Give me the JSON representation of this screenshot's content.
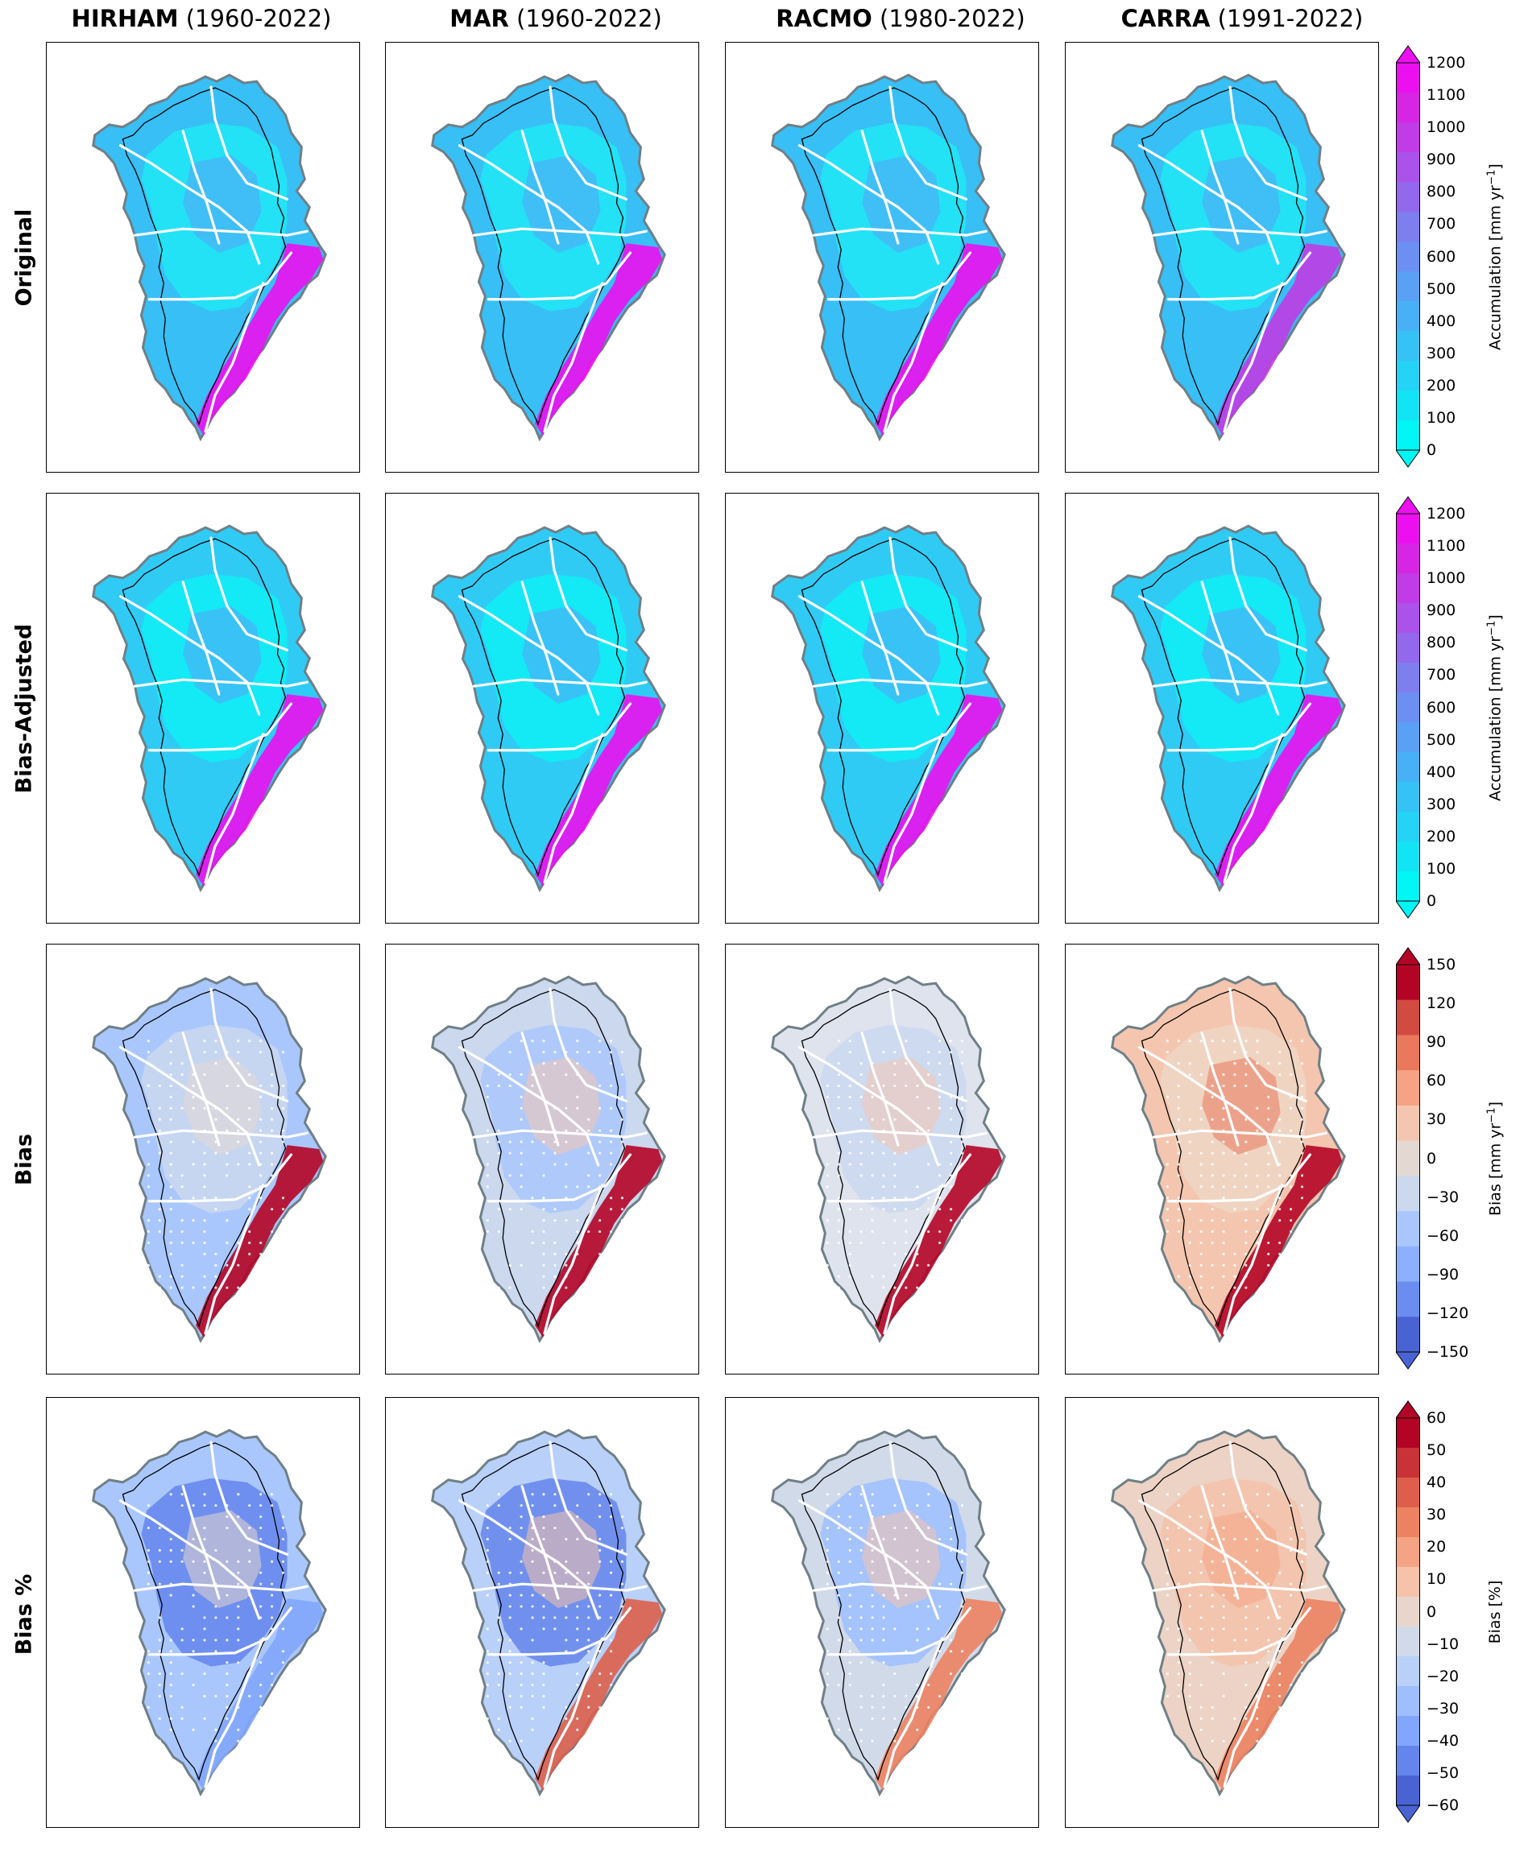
{
  "columns": [
    {
      "model": "HIRHAM",
      "period": "(1960-2022)"
    },
    {
      "model": "MAR",
      "period": "(1960-2022)"
    },
    {
      "model": "RACMO",
      "period": "(1980-2022)"
    },
    {
      "model": "CARRA",
      "period": "(1991-2022)"
    }
  ],
  "rows": [
    "Original",
    "Bias-Adjusted",
    "Bias",
    "Bias %"
  ],
  "colorbars": [
    {
      "label": "Accumulation [mm yr",
      "label_sup": "−1",
      "label_end": "]",
      "ticks": [
        "0",
        "100",
        "200",
        "300",
        "400",
        "500",
        "600",
        "700",
        "800",
        "900",
        "1000",
        "1100",
        "1200"
      ],
      "palette": [
        "#00f5f5",
        "#12e4f5",
        "#24d3f5",
        "#36c2f5",
        "#48b1f5",
        "#5aa0f5",
        "#6c8ff2",
        "#7e7eef",
        "#9468ec",
        "#aa52e9",
        "#c03ce6",
        "#d626e3",
        "#ec10f0"
      ]
    },
    {
      "label": "Accumulation [mm yr",
      "label_sup": "−1",
      "label_end": "]",
      "ticks": [
        "0",
        "100",
        "200",
        "300",
        "400",
        "500",
        "600",
        "700",
        "800",
        "900",
        "1000",
        "1100",
        "1200"
      ],
      "palette": [
        "#00f5f5",
        "#12e4f5",
        "#24d3f5",
        "#36c2f5",
        "#48b1f5",
        "#5aa0f5",
        "#6c8ff2",
        "#7e7eef",
        "#9468ec",
        "#aa52e9",
        "#c03ce6",
        "#d626e3",
        "#ec10f0"
      ]
    },
    {
      "label": "Bias [mm yr",
      "label_sup": "−1",
      "label_end": "]",
      "ticks": [
        "150",
        "120",
        "90",
        "60",
        "30",
        "0",
        "−30",
        "−60",
        "−90",
        "−120",
        "−150"
      ],
      "palette": [
        "#b40426",
        "#d24b40",
        "#e9785d",
        "#f6a385",
        "#f4c6b0",
        "#e4d9d2",
        "#cbd8ee",
        "#aac7fd",
        "#8db0fe",
        "#6b8df0",
        "#4a63d3"
      ]
    },
    {
      "label": "Bias [%]",
      "label_sup": "",
      "label_end": "",
      "ticks": [
        "60",
        "50",
        "40",
        "30",
        "20",
        "10",
        "0",
        "−10",
        "−20",
        "−30",
        "−40",
        "−50",
        "−60"
      ],
      "palette": [
        "#b40426",
        "#c93236",
        "#dd5f4b",
        "#ec8262",
        "#f4a484",
        "#f5c2aa",
        "#e8d6cc",
        "#d1dae9",
        "#b9d0f9",
        "#9ebeff",
        "#82a6fb",
        "#6485ec",
        "#4a63d3"
      ]
    }
  ],
  "map_colors": {
    "row0": [
      [
        "#20e8f5",
        "#38bff5",
        "#5aa0f5",
        "#ec10f0"
      ],
      [
        "#20e8f5",
        "#38bff5",
        "#5aa0f5",
        "#ec10f0"
      ],
      [
        "#20e8f5",
        "#38bff5",
        "#5aa0f5",
        "#ec10f0"
      ],
      [
        "#20e8f5",
        "#38bff5",
        "#5aa0f5",
        "#c03ce6"
      ]
    ],
    "row1": [
      [
        "#0ef0f5",
        "#30cbf5",
        "#5aa0f5",
        "#ec10f0"
      ],
      [
        "#0ef0f5",
        "#30cbf5",
        "#5aa0f5",
        "#ec10f0"
      ],
      [
        "#0ef0f5",
        "#30cbf5",
        "#5aa0f5",
        "#ec10f0"
      ],
      [
        "#0ef0f5",
        "#30cbf5",
        "#5aa0f5",
        "#ec10f0"
      ]
    ],
    "row2": [
      [
        "#cbd8ee",
        "#aac7fd",
        "#e4d9d2",
        "#b40426"
      ],
      [
        "#aac7fd",
        "#cbd8ee",
        "#f4c6b0",
        "#b40426"
      ],
      [
        "#cbd8ee",
        "#dfe3ee",
        "#f4c6b0",
        "#b40426"
      ],
      [
        "#efd6c6",
        "#f4c6b0",
        "#e9785d",
        "#b40426"
      ]
    ],
    "row3": [
      [
        "#6485ec",
        "#aac7fd",
        "#e8d6cc",
        "#82a6fb"
      ],
      [
        "#6485ec",
        "#b9d0f9",
        "#f5c2aa",
        "#dd5f4b"
      ],
      [
        "#9ebeff",
        "#d1dae9",
        "#f5c2aa",
        "#ec8262"
      ],
      [
        "#f5c2aa",
        "#ecd3c5",
        "#f4a484",
        "#ec8262"
      ]
    ]
  }
}
